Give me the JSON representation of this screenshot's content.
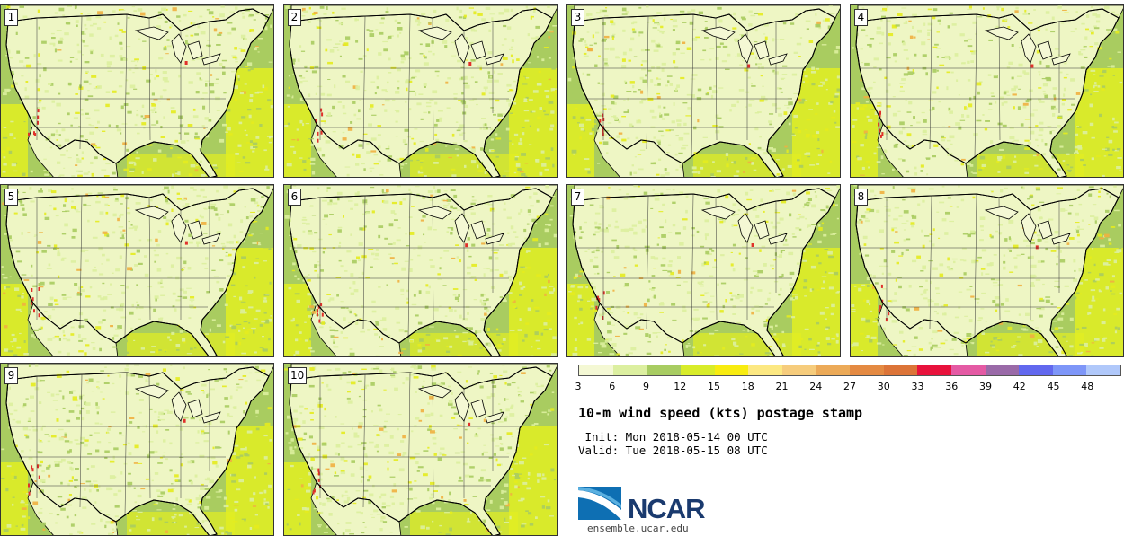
{
  "panels": [
    {
      "label": "1"
    },
    {
      "label": "2"
    },
    {
      "label": "3"
    },
    {
      "label": "4"
    },
    {
      "label": "5"
    },
    {
      "label": "6"
    },
    {
      "label": "7"
    },
    {
      "label": "8"
    },
    {
      "label": "9"
    },
    {
      "label": "10"
    }
  ],
  "map_colors": {
    "land_base": "#eef6c4",
    "light": "#dcef9e",
    "mid": "#a9cc60",
    "yellow": "#e4ec1e",
    "orange": "#f0b040",
    "red": "#e0302a",
    "ocean": "#a9cc60",
    "ocean_yellow": "#e2ee22"
  },
  "colorbar": {
    "colors": [
      "#f4f8d4",
      "#dcefa0",
      "#a8cc62",
      "#d8ec2a",
      "#f8ec10",
      "#fce882",
      "#f6cc7c",
      "#ecaa58",
      "#e48a42",
      "#dc7438",
      "#e8123c",
      "#e45aa4",
      "#9a6aa8",
      "#6268ee",
      "#7e96f8",
      "#b0c8fa"
    ],
    "ticks": [
      "3",
      "6",
      "9",
      "12",
      "15",
      "18",
      "21",
      "24",
      "27",
      "30",
      "33",
      "36",
      "39",
      "42",
      "45",
      "48"
    ]
  },
  "title": "10-m wind speed (kts) postage stamp",
  "init_line": " Init: Mon 2018-05-14 00 UTC",
  "valid_line": "Valid: Tue 2018-05-15 08 UTC",
  "logo": {
    "text": "NCAR"
  },
  "url": "ensemble.ucar.edu"
}
